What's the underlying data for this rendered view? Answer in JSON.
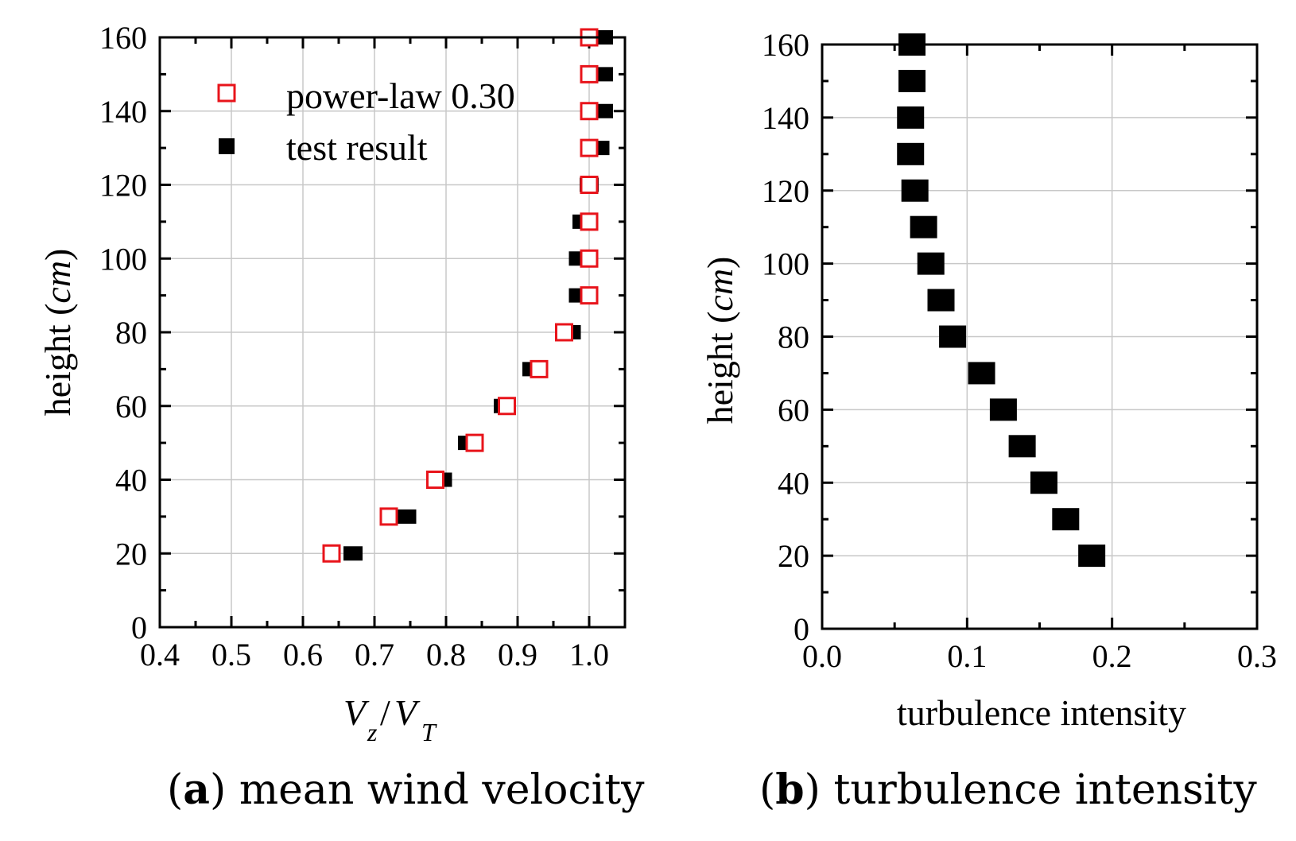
{
  "chart_data": [
    {
      "id": "a",
      "type": "scatter",
      "caption_letter": "a",
      "caption_text": "mean wind velocity",
      "xlabel_main_1": "V",
      "xlabel_sub_1": "z",
      "xlabel_slash": "/",
      "xlabel_main_2": "V",
      "xlabel_sub_2": "T",
      "ylabel_prefix": "height (",
      "ylabel_unit": "cm",
      "ylabel_suffix": ")",
      "xlim": [
        0.4,
        1.05
      ],
      "ylim": [
        0,
        160
      ],
      "xticks": [
        0.4,
        0.5,
        0.6,
        0.7,
        0.8,
        0.9,
        1.0
      ],
      "xtick_labels": [
        "0.4",
        "0.5",
        "0.6",
        "0.7",
        "0.8",
        "0.9",
        "1.0"
      ],
      "yticks": [
        0,
        20,
        40,
        60,
        80,
        100,
        120,
        140,
        160
      ],
      "ytick_labels": [
        "0",
        "20",
        "40",
        "60",
        "80",
        "100",
        "120",
        "140",
        "160"
      ],
      "grid": true,
      "legend_position": "top-left",
      "series": [
        {
          "name": "power-law 0.30",
          "marker": "open-square",
          "color": "#e8141b",
          "x": [
            0.64,
            0.72,
            0.785,
            0.84,
            0.885,
            0.93,
            0.965,
            1.0,
            1.0,
            1.0,
            1.0,
            1.0,
            1.0,
            1.0,
            1.0
          ],
          "y": [
            20,
            30,
            40,
            50,
            60,
            70,
            80,
            90,
            100,
            110,
            120,
            130,
            140,
            150,
            160
          ]
        },
        {
          "name": "test result",
          "marker": "filled-square",
          "color": "#000000",
          "x": [
            0.67,
            0.745,
            0.795,
            0.83,
            0.88,
            0.92,
            0.975,
            0.985,
            0.985,
            0.99,
            1.0,
            1.015,
            1.02,
            1.02,
            1.02
          ],
          "y": [
            20,
            30,
            40,
            50,
            60,
            70,
            80,
            90,
            100,
            110,
            120,
            130,
            140,
            150,
            160
          ]
        }
      ]
    },
    {
      "id": "b",
      "type": "scatter",
      "caption_letter": "b",
      "caption_text": "turbulence intensity",
      "xlabel": "turbulence intensity",
      "ylabel_prefix": "height (",
      "ylabel_unit": "cm",
      "ylabel_suffix": ")",
      "xlim": [
        0.0,
        0.3
      ],
      "ylim": [
        0,
        160
      ],
      "xticks": [
        0.0,
        0.1,
        0.2,
        0.3
      ],
      "xtick_labels": [
        "0.0",
        "0.1",
        "0.2",
        "0.3"
      ],
      "yticks": [
        0,
        20,
        40,
        60,
        80,
        100,
        120,
        140,
        160
      ],
      "ytick_labels": [
        "0",
        "20",
        "40",
        "60",
        "80",
        "100",
        "120",
        "140",
        "160"
      ],
      "grid": true,
      "series": [
        {
          "name": "turbulence intensity",
          "marker": "filled-square",
          "color": "#000000",
          "x": [
            0.186,
            0.168,
            0.153,
            0.138,
            0.125,
            0.11,
            0.09,
            0.082,
            0.075,
            0.07,
            0.064,
            0.061,
            0.061,
            0.062,
            0.062
          ],
          "y": [
            20,
            30,
            40,
            50,
            60,
            70,
            80,
            90,
            100,
            110,
            120,
            130,
            140,
            150,
            160
          ]
        }
      ]
    }
  ]
}
